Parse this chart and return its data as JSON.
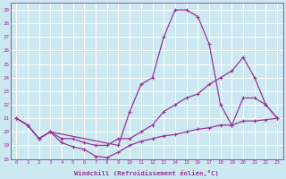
{
  "xlabel": "Windchill (Refroidissement éolien,°C)",
  "bg_color": "#cce8f0",
  "grid_color": "#ffffff",
  "line_color": "#993399",
  "ylim": [
    18,
    29.5
  ],
  "xlim": [
    -0.5,
    23.5
  ],
  "yticks": [
    18,
    19,
    20,
    21,
    22,
    23,
    24,
    25,
    26,
    27,
    28,
    29
  ],
  "xticks": [
    0,
    1,
    2,
    3,
    4,
    5,
    6,
    7,
    8,
    9,
    10,
    11,
    12,
    13,
    14,
    15,
    16,
    17,
    18,
    19,
    20,
    21,
    22,
    23
  ],
  "line1_x": [
    0,
    1,
    2,
    3,
    4,
    5,
    6,
    7,
    8,
    9,
    10,
    11,
    12,
    13,
    14,
    15,
    16,
    17,
    18,
    19,
    20,
    21,
    22,
    23
  ],
  "line1_y": [
    21,
    20.5,
    19.5,
    20,
    19.5,
    19.5,
    19.2,
    19.0,
    19.0,
    19.5,
    19.5,
    20.0,
    20.5,
    21.5,
    22.0,
    22.5,
    22.8,
    23.5,
    24.0,
    24.5,
    25.5,
    24.0,
    22.0,
    21.0
  ],
  "line2_x": [
    0,
    1,
    2,
    3,
    4,
    5,
    6,
    7,
    8,
    9,
    10,
    11,
    12,
    13,
    14,
    15,
    16,
    17,
    18,
    19,
    20,
    21,
    22,
    23
  ],
  "line2_y": [
    21,
    20.5,
    19.5,
    20.0,
    19.2,
    18.9,
    18.7,
    18.2,
    18.1,
    18.5,
    19.0,
    19.3,
    19.5,
    19.7,
    19.8,
    20.0,
    20.2,
    20.3,
    20.5,
    20.5,
    20.8,
    20.8,
    20.9,
    21.0
  ],
  "line3_x": [
    0,
    1,
    2,
    3,
    9,
    10,
    11,
    12,
    13,
    14,
    15,
    16,
    17,
    18,
    19,
    20,
    21,
    22,
    23
  ],
  "line3_y": [
    21,
    20.5,
    19.5,
    20.0,
    19.0,
    21.5,
    23.5,
    24.0,
    27.0,
    29.0,
    29.0,
    28.5,
    26.5,
    22.0,
    20.5,
    22.5,
    22.5,
    22.0,
    21.0
  ]
}
